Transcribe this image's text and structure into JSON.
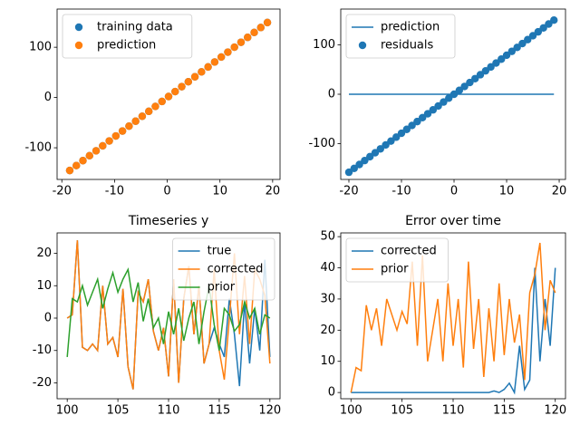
{
  "chart_data": [
    {
      "type": "scatter",
      "legend": "upper left",
      "xlim": [
        -20.9,
        21.4
      ],
      "xticks": [
        -20,
        -10,
        0,
        10,
        20
      ],
      "ylim": [
        -163,
        176
      ],
      "yticks": [
        -100,
        0,
        100
      ],
      "series": [
        {
          "name": "training data",
          "color": "#1f77b4",
          "x": [
            -18.5,
            -17.25,
            -16,
            -14.75,
            -13.5,
            -12.25,
            -11,
            -9.75,
            -8.5,
            -7.25,
            -6,
            -4.75,
            -3.5,
            -2.25,
            -1,
            0.25,
            1.5,
            2.75,
            4,
            5.25,
            6.5,
            7.75,
            9,
            10.25,
            11.5,
            12.75,
            14,
            15.25,
            16.5,
            17.75,
            19
          ],
          "values": [
            -145.2,
            -135.4,
            -125.6,
            -115.8,
            -106.0,
            -96.2,
            -86.4,
            -76.5,
            -66.7,
            -56.9,
            -47.1,
            -37.3,
            -27.5,
            -17.7,
            -7.9,
            2.0,
            11.8,
            21.6,
            31.4,
            41.2,
            51.0,
            60.8,
            70.7,
            80.5,
            90.3,
            100.1,
            109.9,
            119.7,
            129.5,
            139.3,
            149.2
          ]
        },
        {
          "name": "prediction",
          "color": "#ff7f0e",
          "x": [
            -18.5,
            -17.25,
            -16,
            -14.75,
            -13.5,
            -12.25,
            -11,
            -9.75,
            -8.5,
            -7.25,
            -6,
            -4.75,
            -3.5,
            -2.25,
            -1,
            0.25,
            1.5,
            2.75,
            4,
            5.25,
            6.5,
            7.75,
            9,
            10.25,
            11.5,
            12.75,
            14,
            15.25,
            16.5,
            17.75,
            19
          ],
          "values": [
            -145.2,
            -135.4,
            -125.6,
            -115.8,
            -106.0,
            -96.2,
            -86.4,
            -76.5,
            -66.7,
            -56.9,
            -47.1,
            -37.3,
            -27.5,
            -17.7,
            -7.9,
            2.0,
            11.8,
            21.6,
            31.4,
            41.2,
            51.0,
            60.8,
            70.7,
            80.5,
            90.3,
            100.1,
            109.9,
            119.7,
            129.5,
            139.3,
            149.2
          ]
        }
      ]
    },
    {
      "type": "line",
      "legend": "upper left",
      "xlim": [
        -21.55,
        21.2
      ],
      "xticks": [
        -20,
        -10,
        0,
        10,
        20
      ],
      "ylim": [
        -172.5,
        172.5
      ],
      "yticks": [
        -100,
        0,
        100
      ],
      "series": [
        {
          "name": "prediction",
          "color": "#1f77b4",
          "type": "line",
          "x": [
            -20,
            19
          ],
          "values": [
            0,
            0
          ]
        },
        {
          "name": "residuals",
          "color": "#1f77b4",
          "type": "scatter",
          "x": [
            -20,
            -19,
            -18,
            -17,
            -16,
            -15,
            -14,
            -13,
            -12,
            -11,
            -10,
            -9,
            -8,
            -7,
            -6,
            -5,
            -4,
            -3,
            -2,
            -1,
            0,
            1,
            2,
            3,
            4,
            5,
            6,
            7,
            8,
            9,
            10,
            11,
            12,
            13,
            14,
            15,
            16,
            17,
            18,
            19
          ],
          "values": [
            -158,
            -150.1,
            -142.2,
            -134.3,
            -126.4,
            -118.5,
            -110.6,
            -102.7,
            -94.8,
            -86.9,
            -79,
            -71.1,
            -63.2,
            -55.3,
            -47.4,
            -39.5,
            -31.6,
            -23.7,
            -15.8,
            -7.9,
            0,
            7.9,
            15.8,
            23.7,
            31.6,
            39.5,
            47.4,
            55.3,
            63.2,
            71.1,
            79,
            86.9,
            94.8,
            102.7,
            110.6,
            118.5,
            126.4,
            134.3,
            142.2,
            150.1
          ]
        }
      ]
    },
    {
      "type": "line",
      "title": "Timeseries y",
      "legend": "upper right",
      "xlim": [
        99,
        121
      ],
      "xticks": [
        100,
        105,
        110,
        115,
        120
      ],
      "ylim": [
        -24.9,
        26.3
      ],
      "yticks": [
        -20,
        -10,
        0,
        10,
        20
      ],
      "x": [
        100,
        100.5,
        101,
        101.5,
        102,
        102.5,
        103,
        103.5,
        104,
        104.5,
        105,
        105.5,
        106,
        106.5,
        107,
        107.5,
        108,
        108.5,
        109,
        109.5,
        110,
        110.5,
        111,
        111.5,
        112,
        112.5,
        113,
        113.5,
        114,
        114.5,
        115,
        115.5,
        116,
        116.5,
        117,
        117.5,
        118,
        118.5,
        119,
        119.5,
        120
      ],
      "series": [
        {
          "name": "true",
          "color": "#1f77b4",
          "values": [
            0,
            1,
            24,
            -9,
            -10,
            -8,
            -10,
            10,
            -8,
            -6,
            -12,
            9,
            -15,
            -22,
            8,
            5,
            12,
            -4,
            -10,
            -3,
            -18,
            12,
            -20,
            6,
            16,
            -5,
            10,
            -14,
            -8,
            -3,
            -8,
            -12,
            6,
            -5,
            -21,
            5,
            -14,
            3,
            -10,
            18,
            -12
          ]
        },
        {
          "name": "corrected",
          "color": "#ff7f0e",
          "values": [
            0,
            1,
            24,
            -9,
            -10,
            -8,
            -10,
            10,
            -8,
            -6,
            -12,
            9,
            -15,
            -22,
            8,
            5,
            12,
            -4,
            -10,
            -3,
            -18,
            12,
            -20,
            6,
            16,
            -5,
            10,
            -14,
            -8,
            15,
            -10,
            -19,
            0,
            20,
            -5,
            13,
            -8,
            15,
            12,
            7,
            -14
          ]
        },
        {
          "name": "prior",
          "color": "#2ca02c",
          "values": [
            -12,
            6,
            5,
            10,
            4,
            8,
            12,
            3,
            9,
            14,
            8,
            12,
            15,
            5,
            11,
            -1,
            6,
            -3,
            0,
            -8,
            2,
            -5,
            3,
            -7,
            0,
            5,
            -8,
            2,
            10,
            -2,
            -10,
            3,
            1,
            -4,
            -2,
            5,
            0,
            3,
            -5,
            1,
            0
          ]
        }
      ]
    },
    {
      "type": "line",
      "title": "Error over time",
      "legend": "upper left",
      "xlim": [
        99,
        121
      ],
      "xticks": [
        100,
        105,
        110,
        115,
        120
      ],
      "ylim": [
        -2,
        51.2
      ],
      "yticks": [
        0,
        10,
        20,
        30,
        40,
        50
      ],
      "x": [
        100,
        100.5,
        101,
        101.5,
        102,
        102.5,
        103,
        103.5,
        104,
        104.5,
        105,
        105.5,
        106,
        106.5,
        107,
        107.5,
        108,
        108.5,
        109,
        109.5,
        110,
        110.5,
        111,
        111.5,
        112,
        112.5,
        113,
        113.5,
        114,
        114.5,
        115,
        115.5,
        116,
        116.5,
        117,
        117.5,
        118,
        118.5,
        119,
        119.5,
        120
      ],
      "series": [
        {
          "name": "corrected",
          "color": "#1f77b4",
          "values": [
            0,
            0,
            0,
            0,
            0,
            0,
            0,
            0,
            0,
            0,
            0,
            0,
            0,
            0,
            0,
            0,
            0,
            0,
            0,
            0,
            0,
            0,
            0,
            0,
            0,
            0,
            0,
            0,
            0.5,
            0,
            1,
            3,
            0,
            15,
            1,
            4,
            40,
            10,
            30,
            15,
            40
          ]
        },
        {
          "name": "prior",
          "color": "#ff7f0e",
          "values": [
            0,
            8,
            7,
            28,
            20,
            27,
            15,
            30,
            25,
            20,
            26,
            22,
            42,
            15,
            44,
            10,
            20,
            30,
            10,
            35,
            15,
            30,
            8,
            42,
            14,
            30,
            5,
            27,
            10,
            35,
            12,
            30,
            16,
            25,
            4,
            32,
            38,
            48,
            20,
            36,
            32
          ]
        }
      ]
    }
  ]
}
